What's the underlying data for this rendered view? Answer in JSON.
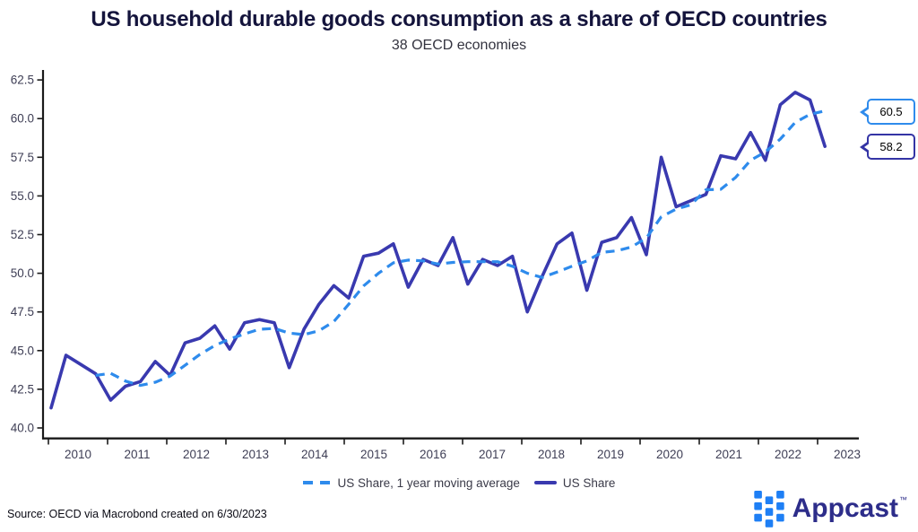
{
  "title": "US household durable goods consumption as a share of OECD countries",
  "subtitle": "38 OECD economies",
  "source_note": "Source: OECD via Macrobond created on 6/30/2023",
  "logo": {
    "text": "Appcast",
    "trademark": "™",
    "icon": "appcast-squares-grid-icon",
    "icon_color": "#1E7FF5",
    "text_color": "#2D2D8A"
  },
  "callouts": [
    {
      "label": "60.5",
      "series": "US Share, 1 year moving average",
      "color": "#2E8BEC"
    },
    {
      "label": "58.2",
      "series": "US Share",
      "color": "#3434A5"
    }
  ],
  "legend": [
    {
      "label": "US Share, 1 year moving average",
      "style": "dashed",
      "color": "#2E8BEC"
    },
    {
      "label": "US Share",
      "style": "solid",
      "color": "#3939AF"
    }
  ],
  "chart_data": {
    "type": "line",
    "title": "US household durable goods consumption as a share of OECD countries",
    "subtitle": "38 OECD economies",
    "xlabel": "",
    "ylabel": "",
    "frequency": "quarterly",
    "start_period": "2010 Q1",
    "end_period": "2023 Q1",
    "categories": [
      "2010",
      "2011",
      "2012",
      "2013",
      "2014",
      "2015",
      "2016",
      "2017",
      "2018",
      "2019",
      "2020",
      "2021",
      "2022",
      "2023"
    ],
    "ylim": [
      40.0,
      62.5
    ],
    "y_ticks": [
      40.0,
      42.5,
      45.0,
      47.5,
      50.0,
      52.5,
      55.0,
      57.5,
      60.0,
      62.5
    ],
    "grid": false,
    "legend_position": "bottom",
    "series": [
      {
        "name": "US Share, 1 year moving average",
        "color": "#2E8BEC",
        "dashed": true,
        "start_index": 3,
        "latest_value": 60.5,
        "values": [
          43.4,
          43.53,
          43.03,
          42.75,
          42.95,
          43.35,
          44.05,
          44.75,
          45.33,
          45.75,
          46.08,
          46.38,
          46.43,
          46.13,
          46.03,
          46.28,
          46.88,
          48.0,
          49.18,
          50.0,
          50.68,
          50.85,
          50.8,
          50.6,
          50.7,
          50.75,
          50.75,
          50.75,
          50.45,
          50.0,
          49.73,
          50.08,
          50.45,
          50.8,
          51.35,
          51.45,
          51.7,
          52.28,
          53.65,
          54.15,
          54.43,
          55.4,
          55.43,
          56.2,
          57.3,
          57.85,
          58.68,
          59.75,
          60.28,
          60.5
        ]
      },
      {
        "name": "US Share",
        "color": "#3939AF",
        "dashed": false,
        "start_index": 0,
        "latest_value": 58.2,
        "values": [
          41.3,
          44.7,
          44.1,
          43.5,
          41.8,
          42.7,
          43.0,
          44.3,
          43.4,
          45.5,
          45.8,
          46.6,
          45.1,
          46.8,
          47.0,
          46.8,
          43.9,
          46.4,
          48.0,
          49.2,
          48.4,
          51.1,
          51.3,
          51.9,
          49.1,
          50.9,
          50.5,
          52.3,
          49.3,
          50.9,
          50.5,
          51.1,
          47.5,
          49.8,
          51.9,
          52.6,
          48.9,
          52.0,
          52.3,
          53.6,
          51.2,
          57.5,
          54.3,
          54.7,
          55.1,
          57.6,
          57.4,
          59.1,
          57.3,
          60.9,
          61.7,
          61.2,
          58.2
        ]
      }
    ]
  }
}
